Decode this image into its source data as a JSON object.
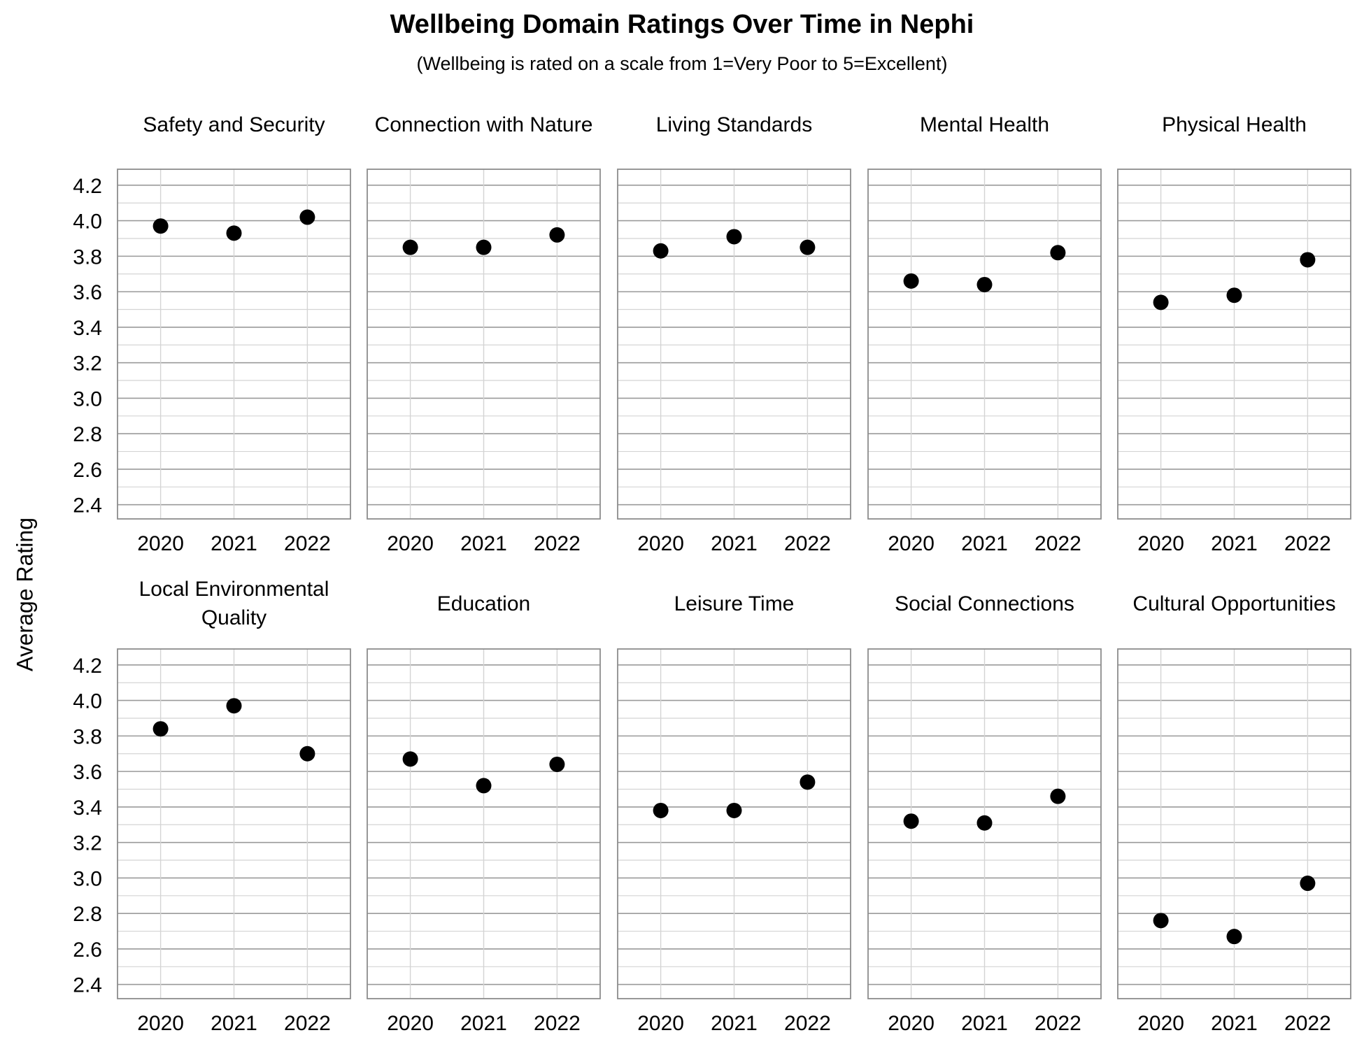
{
  "chart_data": {
    "type": "scatter",
    "title": "Wellbeing Domain Ratings Over Time in Nephi",
    "subtitle": "(Wellbeing is rated on a scale from 1=Very Poor to 5=Excellent)",
    "ylabel": "Average Rating",
    "x": [
      "2020",
      "2021",
      "2022"
    ],
    "yticks": [
      "2.4",
      "2.6",
      "2.8",
      "3.0",
      "3.2",
      "3.4",
      "3.6",
      "3.8",
      "4.0",
      "4.2"
    ],
    "ylim": [
      2.32,
      4.29
    ],
    "grid": true,
    "marker_color": "#000000",
    "panels": [
      {
        "name": "Safety and Security",
        "values": [
          3.97,
          3.93,
          4.02
        ]
      },
      {
        "name": "Connection with Nature",
        "values": [
          3.85,
          3.85,
          3.92
        ]
      },
      {
        "name": "Living Standards",
        "values": [
          3.83,
          3.91,
          3.85
        ]
      },
      {
        "name": "Mental Health",
        "values": [
          3.66,
          3.64,
          3.82
        ]
      },
      {
        "name": "Physical Health",
        "values": [
          3.54,
          3.58,
          3.78
        ]
      },
      {
        "name": "Local Environmental Quality",
        "values": [
          3.84,
          3.97,
          3.7
        ]
      },
      {
        "name": "Education",
        "values": [
          3.67,
          3.52,
          3.64
        ]
      },
      {
        "name": "Leisure Time",
        "values": [
          3.38,
          3.38,
          3.54
        ]
      },
      {
        "name": "Social Connections",
        "values": [
          3.32,
          3.31,
          3.46
        ]
      },
      {
        "name": "Cultural Opportunities",
        "values": [
          2.76,
          2.67,
          2.97
        ]
      }
    ]
  }
}
